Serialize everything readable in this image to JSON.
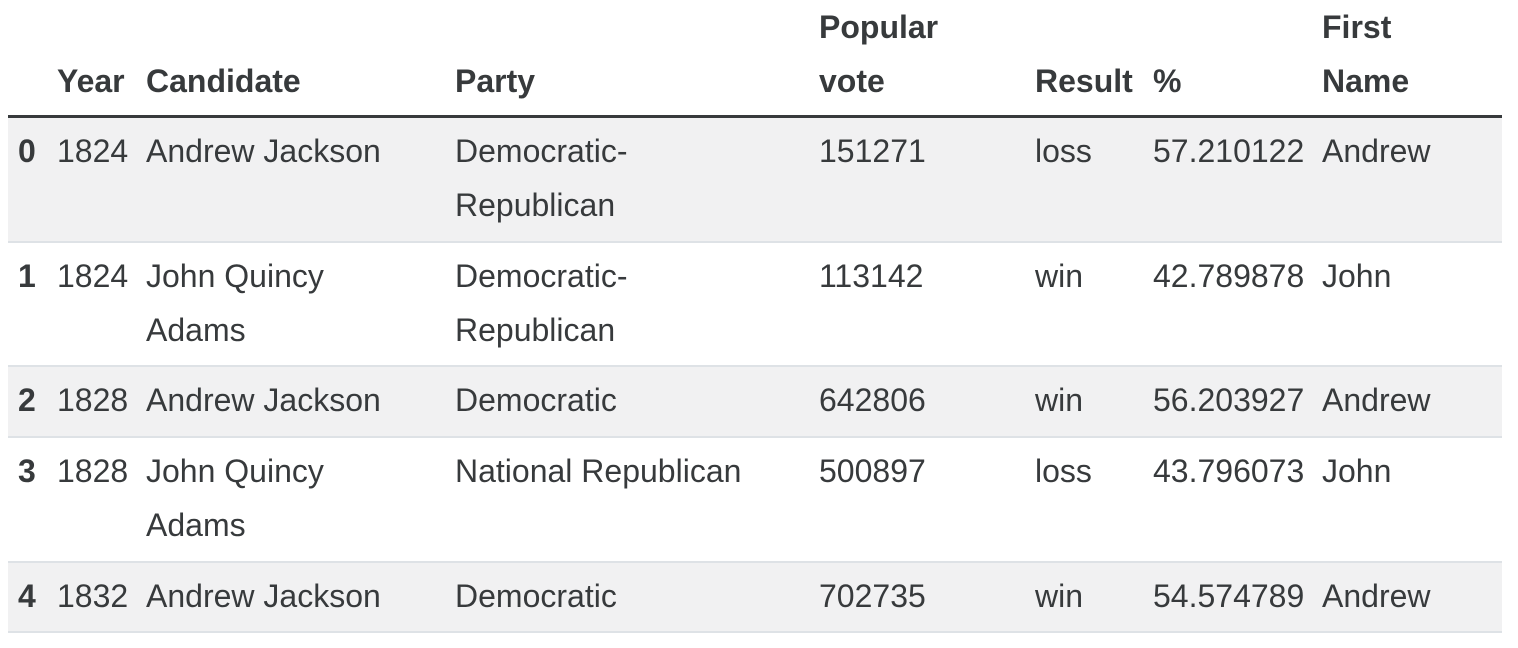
{
  "table": {
    "columns": [
      {
        "key": "index",
        "label": ""
      },
      {
        "key": "year",
        "label": "Year"
      },
      {
        "key": "candidate",
        "label": "Candidate"
      },
      {
        "key": "party",
        "label": "Party"
      },
      {
        "key": "popular_vote",
        "label": "Popular\nvote"
      },
      {
        "key": "result",
        "label": "Result"
      },
      {
        "key": "pct",
        "label": "%"
      },
      {
        "key": "first_name",
        "label": "First\nName"
      }
    ],
    "rows": [
      {
        "index": "0",
        "year": "1824",
        "candidate": "Andrew Jackson",
        "party": "Democratic-\nRepublican",
        "popular_vote": "151271",
        "result": "loss",
        "pct": "57.210122",
        "first_name": "Andrew"
      },
      {
        "index": "1",
        "year": "1824",
        "candidate": "John Quincy\nAdams",
        "party": "Democratic-\nRepublican",
        "popular_vote": "113142",
        "result": "win",
        "pct": "42.789878",
        "first_name": "John"
      },
      {
        "index": "2",
        "year": "1828",
        "candidate": "Andrew Jackson",
        "party": "Democratic",
        "popular_vote": "642806",
        "result": "win",
        "pct": "56.203927",
        "first_name": "Andrew"
      },
      {
        "index": "3",
        "year": "1828",
        "candidate": "John Quincy\nAdams",
        "party": "National Republican",
        "popular_vote": "500897",
        "result": "loss",
        "pct": "43.796073",
        "first_name": "John"
      },
      {
        "index": "4",
        "year": "1832",
        "candidate": "Andrew Jackson",
        "party": "Democratic",
        "popular_vote": "702735",
        "result": "win",
        "pct": "54.574789",
        "first_name": "Andrew"
      }
    ]
  },
  "colors": {
    "text": "#373a3c",
    "stripe_background": "#f1f1f2",
    "row_border": "#dee2e6",
    "header_border": "#373a3c",
    "page_background": "#ffffff"
  }
}
